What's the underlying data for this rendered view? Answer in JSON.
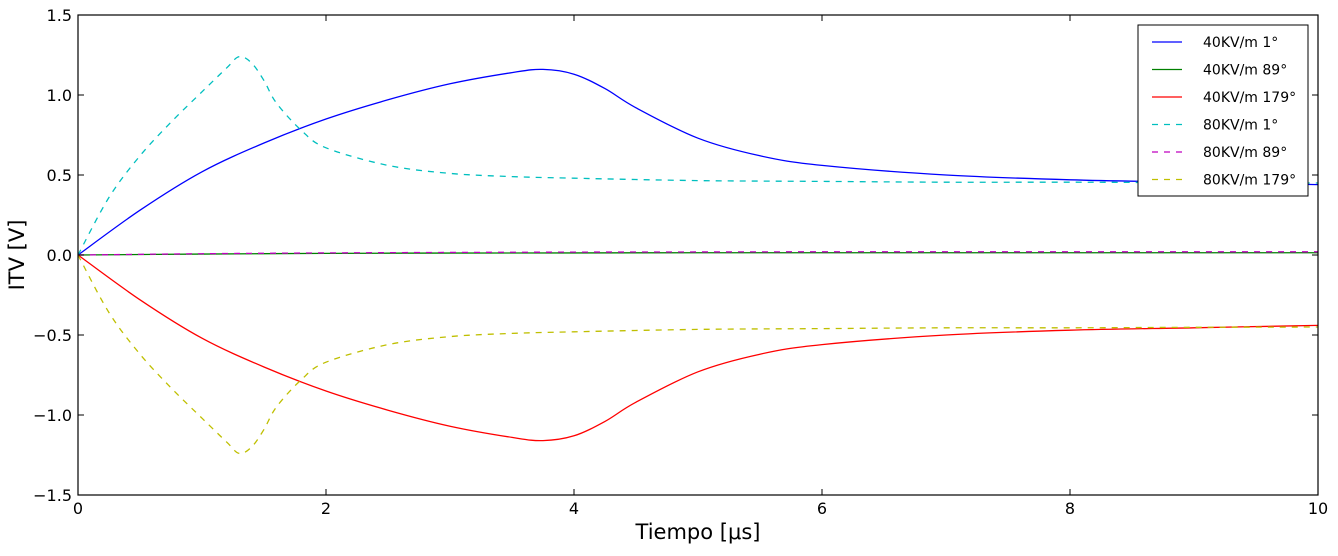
{
  "chart_data": {
    "type": "line",
    "xlabel": "Tiempo [μs]",
    "ylabel": "ITV [V]",
    "xlim": [
      0,
      10
    ],
    "ylim": [
      -1.5,
      1.5
    ],
    "xticks": [
      0,
      2,
      4,
      6,
      8,
      10
    ],
    "xtick_labels": [
      "0",
      "2",
      "4",
      "6",
      "8",
      "10"
    ],
    "yticks": [
      -1.5,
      -1.0,
      -0.5,
      0.0,
      0.5,
      1.0,
      1.5
    ],
    "ytick_labels": [
      "−1.5",
      "−1.0",
      "−0.5",
      "0.0",
      "0.5",
      "1.0",
      "1.5"
    ],
    "grid": false,
    "legend_position": "top-right",
    "series": [
      {
        "name": "40KV/m  1°",
        "color": "#0000ff",
        "style": "solid",
        "x": [
          0,
          0.5,
          1.0,
          1.5,
          2.0,
          2.5,
          3.0,
          3.5,
          3.75,
          4.0,
          4.25,
          4.5,
          5.0,
          5.5,
          6.0,
          7.0,
          8.0,
          9.0,
          10.0
        ],
        "y": [
          0,
          0.28,
          0.52,
          0.7,
          0.85,
          0.97,
          1.07,
          1.14,
          1.16,
          1.13,
          1.04,
          0.92,
          0.73,
          0.62,
          0.56,
          0.5,
          0.47,
          0.455,
          0.44
        ]
      },
      {
        "name": "40KV/m  89°",
        "color": "#008000",
        "style": "solid",
        "x": [
          0,
          1,
          2,
          3,
          4,
          5,
          6,
          7,
          8,
          9,
          10
        ],
        "y": [
          0,
          0.006,
          0.01,
          0.012,
          0.013,
          0.014,
          0.014,
          0.014,
          0.014,
          0.014,
          0.014
        ]
      },
      {
        "name": "40KV/m  179°",
        "color": "#ff0000",
        "style": "solid",
        "x": [
          0,
          0.5,
          1.0,
          1.5,
          2.0,
          2.5,
          3.0,
          3.5,
          3.75,
          4.0,
          4.25,
          4.5,
          5.0,
          5.5,
          6.0,
          7.0,
          8.0,
          9.0,
          10.0
        ],
        "y": [
          0,
          -0.28,
          -0.52,
          -0.7,
          -0.85,
          -0.97,
          -1.07,
          -1.14,
          -1.16,
          -1.13,
          -1.04,
          -0.92,
          -0.73,
          -0.62,
          -0.56,
          -0.5,
          -0.47,
          -0.455,
          -0.44
        ]
      },
      {
        "name": "80KV/m  1°",
        "color": "#00bfbf",
        "style": "dashed",
        "x": [
          0,
          0.25,
          0.5,
          0.75,
          1.0,
          1.2,
          1.3,
          1.4,
          1.5,
          1.6,
          1.8,
          2.0,
          2.5,
          3.0,
          3.5,
          4.0,
          5.0,
          6.0,
          7.0,
          8.0,
          9.0,
          10.0
        ],
        "y": [
          0,
          0.36,
          0.62,
          0.83,
          1.02,
          1.17,
          1.24,
          1.2,
          1.09,
          0.95,
          0.78,
          0.67,
          0.56,
          0.51,
          0.49,
          0.48,
          0.465,
          0.46,
          0.455,
          0.455,
          0.452,
          0.45
        ]
      },
      {
        "name": "80KV/m  89°",
        "color": "#bf00bf",
        "style": "dashed",
        "x": [
          0,
          1,
          2,
          3,
          4,
          5,
          6,
          7,
          8,
          9,
          10
        ],
        "y": [
          0,
          0.008,
          0.013,
          0.016,
          0.018,
          0.019,
          0.02,
          0.02,
          0.02,
          0.02,
          0.02
        ]
      },
      {
        "name": "80KV/m  179°",
        "color": "#bfbf00",
        "style": "dashed",
        "x": [
          0,
          0.25,
          0.5,
          0.75,
          1.0,
          1.2,
          1.3,
          1.4,
          1.5,
          1.6,
          1.8,
          2.0,
          2.5,
          3.0,
          3.5,
          4.0,
          5.0,
          6.0,
          7.0,
          8.0,
          9.0,
          10.0
        ],
        "y": [
          0,
          -0.36,
          -0.62,
          -0.83,
          -1.02,
          -1.17,
          -1.24,
          -1.2,
          -1.09,
          -0.95,
          -0.78,
          -0.67,
          -0.56,
          -0.51,
          -0.49,
          -0.48,
          -0.465,
          -0.46,
          -0.455,
          -0.455,
          -0.452,
          -0.45
        ]
      }
    ]
  }
}
